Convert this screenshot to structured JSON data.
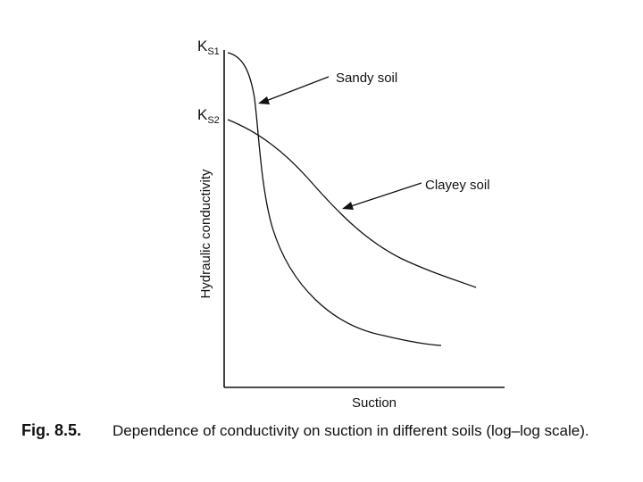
{
  "figure": {
    "ks1": {
      "main": "K",
      "sub": "S1"
    },
    "ks2": {
      "main": "K",
      "sub": "S2"
    },
    "ylabel": "Hydraulic conductivity",
    "xlabel": "Suction",
    "curves": [
      {
        "name": "Sandy soil"
      },
      {
        "name": "Clayey soil"
      }
    ],
    "caption": {
      "number": "Fig. 8.5.",
      "text": "Dependence of conductivity on suction in different soils (log–log scale)."
    }
  }
}
